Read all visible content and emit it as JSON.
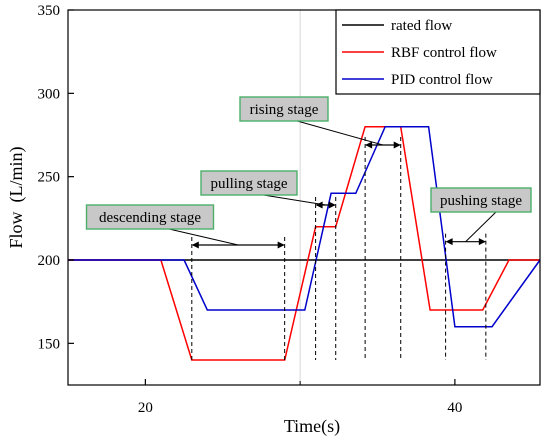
{
  "chart_data": {
    "type": "line",
    "title": "",
    "xlabel": "Time(s)",
    "ylabel": "Flow  (L/min)",
    "xlim": [
      15,
      45.5
    ],
    "ylim": [
      125,
      350
    ],
    "xticks": [
      20,
      40
    ],
    "yticks": [
      150,
      200,
      250,
      300,
      350
    ],
    "grid": "x-minor-only",
    "legend_position": "top-right",
    "series": [
      {
        "name": "rated flow",
        "color": "#000000",
        "x": [
          15,
          45.5
        ],
        "y": [
          200,
          200
        ]
      },
      {
        "name": "RBF  control flow",
        "color": "#ff0000",
        "x": [
          15,
          21,
          23,
          29,
          31,
          32.3,
          34.2,
          36.5,
          38.4,
          40,
          41.8,
          43.5,
          45.5
        ],
        "y": [
          200,
          200,
          140,
          140,
          220,
          220,
          280,
          280,
          170,
          170,
          170,
          200,
          200
        ]
      },
      {
        "name": "PID  control flow",
        "color": "#0000cc",
        "x": [
          15,
          22.5,
          24,
          30.3,
          32,
          33.6,
          35.5,
          38.3,
          40,
          42.4,
          45.5
        ],
        "y": [
          200,
          200,
          170,
          170,
          240,
          240,
          280,
          280,
          160,
          160,
          200
        ]
      }
    ],
    "annotations": [
      {
        "label": "descending stage",
        "x_start": 23,
        "x_end": 29,
        "y_arrow": 209
      },
      {
        "label": "pulling stage",
        "x_start": 31,
        "x_end": 32.3,
        "y_arrow": 233
      },
      {
        "label": "rising stage",
        "x_start": 34.2,
        "x_end": 36.5,
        "y_arrow": 269
      },
      {
        "label": "pushing stage",
        "x_start": 39.4,
        "x_end": 42,
        "y_arrow": 211
      }
    ]
  }
}
